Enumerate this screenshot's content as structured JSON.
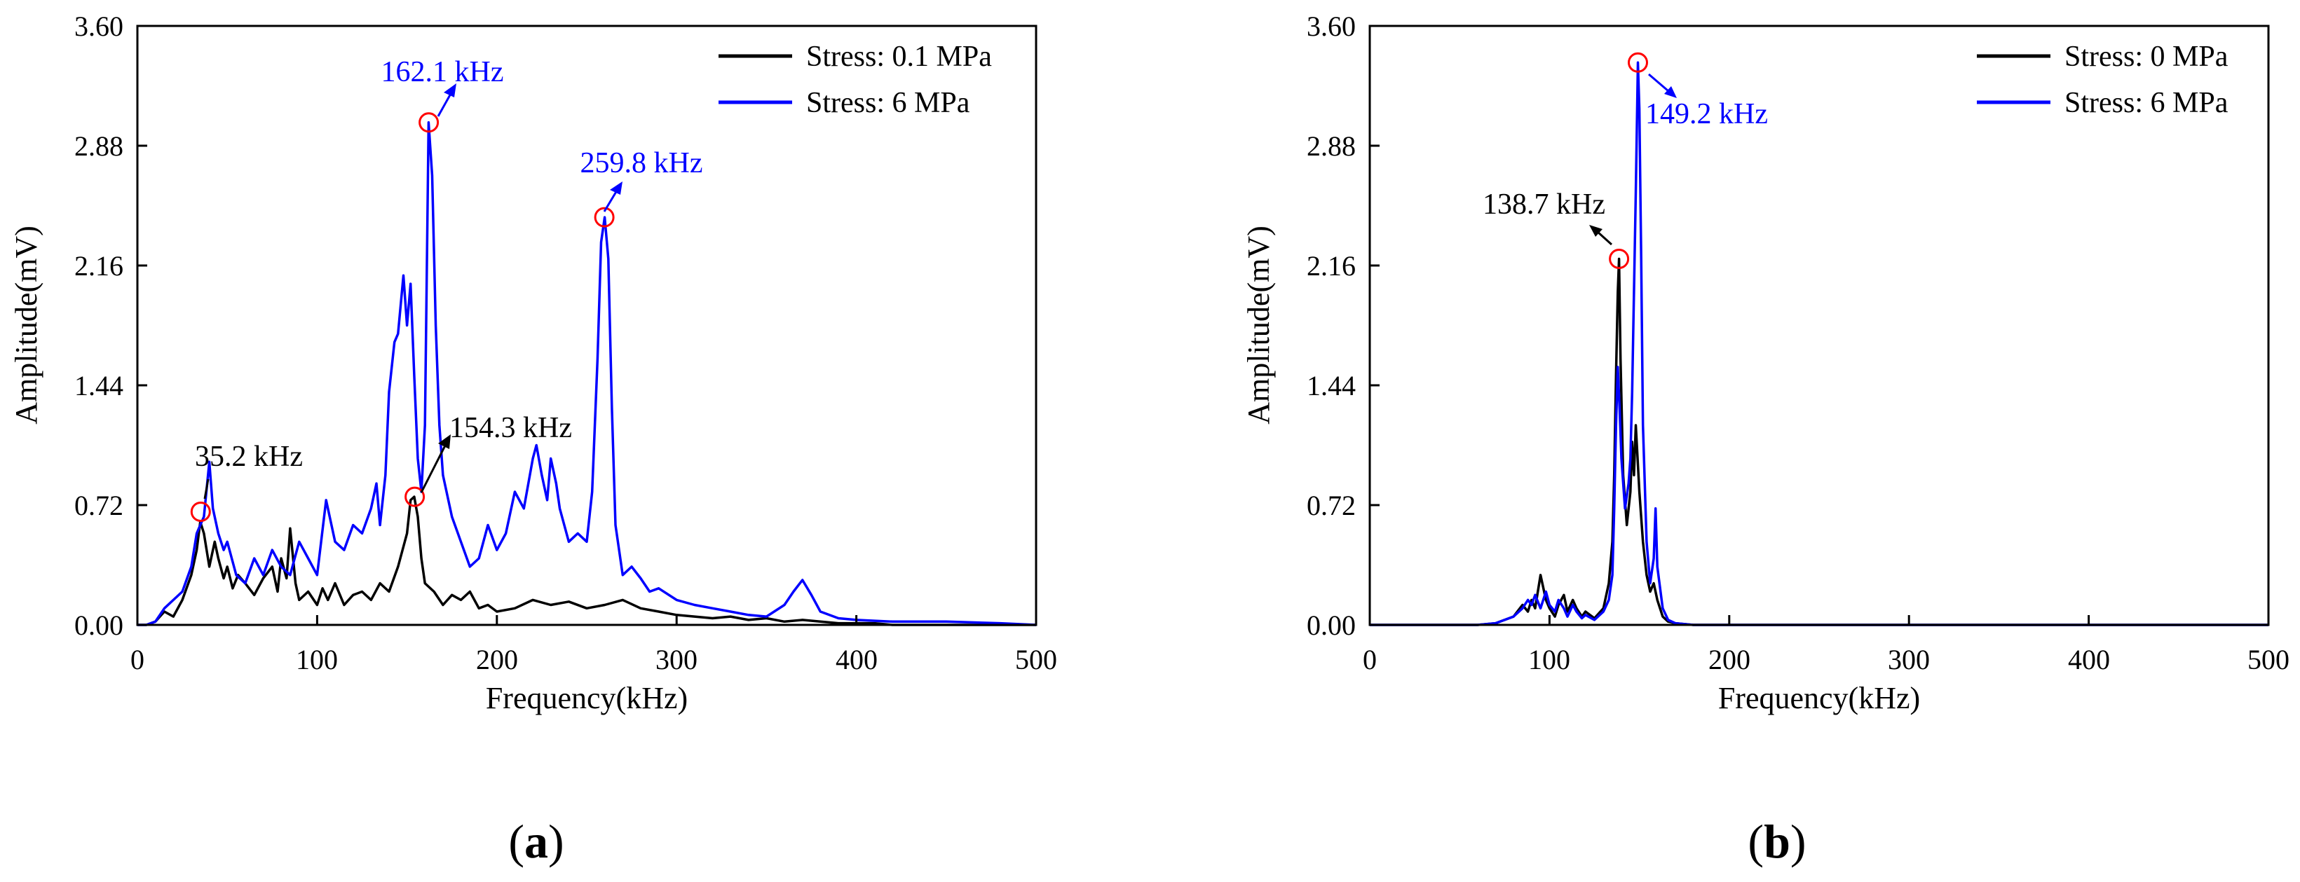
{
  "chart_data": [
    {
      "type": "line",
      "panel_label": "a",
      "title": "",
      "xlabel": "Frequency(kHz)",
      "ylabel": "Amplitude(mV)",
      "xlim": [
        0,
        500
      ],
      "ylim": [
        0,
        3.6
      ],
      "x_ticks": [
        0,
        100,
        200,
        300,
        400,
        500
      ],
      "x_tick_labels": [
        "0",
        "100",
        "200",
        "300",
        "400",
        "500"
      ],
      "y_ticks": [
        0,
        0.72,
        1.44,
        2.16,
        2.88,
        3.6
      ],
      "y_tick_labels": [
        "0.00",
        "0.72",
        "1.44",
        "2.16",
        "2.88",
        "3.60"
      ],
      "grid": false,
      "legend_position": "top-right",
      "series": [
        {
          "name": "Stress: 0.1 MPa",
          "color": "#000000",
          "x": [
            0,
            5,
            10,
            15,
            20,
            25,
            30,
            33,
            35,
            37,
            40,
            43,
            45,
            48,
            50,
            53,
            56,
            60,
            65,
            70,
            75,
            78,
            80,
            83,
            85,
            88,
            90,
            95,
            100,
            103,
            106,
            110,
            115,
            120,
            125,
            130,
            135,
            140,
            145,
            150,
            152,
            154,
            156,
            158,
            160,
            165,
            170,
            175,
            180,
            185,
            190,
            195,
            200,
            210,
            220,
            230,
            240,
            250,
            260,
            270,
            280,
            290,
            300,
            310,
            320,
            330,
            340,
            350,
            360,
            370,
            380,
            390,
            400,
            410,
            420,
            450,
            500
          ],
          "values": [
            0,
            0,
            0.02,
            0.08,
            0.05,
            0.15,
            0.3,
            0.45,
            0.62,
            0.55,
            0.35,
            0.5,
            0.4,
            0.28,
            0.35,
            0.22,
            0.3,
            0.25,
            0.18,
            0.28,
            0.35,
            0.2,
            0.4,
            0.28,
            0.58,
            0.25,
            0.15,
            0.2,
            0.12,
            0.22,
            0.15,
            0.25,
            0.12,
            0.18,
            0.2,
            0.15,
            0.25,
            0.2,
            0.35,
            0.55,
            0.75,
            0.77,
            0.65,
            0.4,
            0.25,
            0.2,
            0.12,
            0.18,
            0.15,
            0.2,
            0.1,
            0.12,
            0.08,
            0.1,
            0.15,
            0.12,
            0.14,
            0.1,
            0.12,
            0.15,
            0.1,
            0.08,
            0.06,
            0.05,
            0.04,
            0.05,
            0.03,
            0.04,
            0.02,
            0.03,
            0.02,
            0.01,
            0.01,
            0.01,
            0,
            0,
            0
          ]
        },
        {
          "name": "Stress: 6 MPa",
          "color": "#0000ff",
          "x": [
            0,
            5,
            10,
            15,
            20,
            25,
            30,
            33,
            35,
            37,
            40,
            42,
            45,
            48,
            50,
            55,
            60,
            65,
            70,
            75,
            80,
            85,
            90,
            95,
            100,
            105,
            110,
            115,
            120,
            125,
            130,
            133,
            135,
            138,
            140,
            143,
            145,
            148,
            150,
            152,
            154,
            156,
            158,
            160,
            162,
            164,
            166,
            168,
            170,
            175,
            180,
            185,
            190,
            195,
            200,
            205,
            210,
            215,
            220,
            222,
            225,
            228,
            230,
            233,
            235,
            240,
            245,
            250,
            253,
            256,
            258,
            260,
            262,
            264,
            266,
            270,
            275,
            280,
            285,
            290,
            300,
            310,
            320,
            330,
            340,
            350,
            360,
            365,
            370,
            375,
            380,
            390,
            400,
            420,
            450,
            480,
            500
          ],
          "values": [
            0,
            0,
            0.02,
            0.1,
            0.15,
            0.2,
            0.35,
            0.55,
            0.6,
            0.65,
            0.98,
            0.7,
            0.55,
            0.45,
            0.5,
            0.3,
            0.25,
            0.4,
            0.3,
            0.45,
            0.35,
            0.3,
            0.5,
            0.4,
            0.3,
            0.75,
            0.5,
            0.45,
            0.6,
            0.55,
            0.7,
            0.85,
            0.6,
            0.9,
            1.4,
            1.7,
            1.75,
            2.1,
            1.8,
            2.05,
            1.5,
            1.0,
            0.8,
            1.2,
            3.02,
            2.7,
            1.8,
            1.2,
            0.9,
            0.65,
            0.5,
            0.35,
            0.4,
            0.6,
            0.45,
            0.55,
            0.8,
            0.7,
            1.0,
            1.08,
            0.9,
            0.75,
            1.0,
            0.85,
            0.7,
            0.5,
            0.55,
            0.5,
            0.8,
            1.6,
            2.3,
            2.45,
            2.2,
            1.3,
            0.6,
            0.3,
            0.35,
            0.28,
            0.2,
            0.22,
            0.15,
            0.12,
            0.1,
            0.08,
            0.06,
            0.05,
            0.12,
            0.2,
            0.27,
            0.18,
            0.08,
            0.04,
            0.03,
            0.02,
            0.02,
            0.01,
            0
          ]
        }
      ],
      "annotations": [
        {
          "text": "35.2 kHz",
          "x": 35.2,
          "y": 0.68,
          "color": "#000000"
        },
        {
          "text": "154.3 kHz",
          "x": 154.3,
          "y": 0.77,
          "color": "#000000"
        },
        {
          "text": "162.1 kHz",
          "x": 162.1,
          "y": 3.02,
          "color": "#0000ff"
        },
        {
          "text": "259.8 kHz",
          "x": 259.8,
          "y": 2.45,
          "color": "#0000ff"
        }
      ]
    },
    {
      "type": "line",
      "panel_label": "b",
      "title": "",
      "xlabel": "Frequency(kHz)",
      "ylabel": "Amplitude(mV)",
      "xlim": [
        0,
        500
      ],
      "ylim": [
        0,
        3.6
      ],
      "x_ticks": [
        0,
        100,
        200,
        300,
        400,
        500
      ],
      "x_tick_labels": [
        "0",
        "100",
        "200",
        "300",
        "400",
        "500"
      ],
      "y_ticks": [
        0,
        0.72,
        1.44,
        2.16,
        2.88,
        3.6
      ],
      "y_tick_labels": [
        "0.00",
        "0.72",
        "1.44",
        "2.16",
        "2.88",
        "3.60"
      ],
      "grid": false,
      "legend_position": "top-right",
      "series": [
        {
          "name": "Stress: 0 MPa",
          "color": "#000000",
          "x": [
            0,
            20,
            40,
            60,
            70,
            80,
            85,
            88,
            90,
            92,
            95,
            98,
            100,
            103,
            105,
            108,
            110,
            113,
            115,
            118,
            120,
            125,
            130,
            133,
            135,
            136,
            137,
            138,
            138.7,
            139.5,
            141,
            143,
            145,
            146,
            147,
            148,
            150,
            152,
            154,
            156,
            158,
            160,
            163,
            166,
            170,
            180,
            200,
            300,
            400,
            500
          ],
          "values": [
            0,
            0,
            0,
            0,
            0.01,
            0.05,
            0.12,
            0.08,
            0.15,
            0.1,
            0.3,
            0.15,
            0.1,
            0.05,
            0.12,
            0.18,
            0.08,
            0.15,
            0.1,
            0.05,
            0.08,
            0.04,
            0.1,
            0.25,
            0.5,
            0.9,
            1.5,
            2.0,
            2.2,
            1.6,
            0.9,
            0.6,
            0.8,
            1.1,
            0.9,
            1.2,
            0.8,
            0.5,
            0.3,
            0.2,
            0.25,
            0.15,
            0.05,
            0.02,
            0.01,
            0,
            0,
            0,
            0,
            0
          ]
        },
        {
          "name": "Stress: 6 MPa",
          "color": "#0000ff",
          "x": [
            0,
            20,
            40,
            60,
            70,
            80,
            85,
            88,
            90,
            92,
            95,
            98,
            100,
            103,
            105,
            108,
            110,
            113,
            115,
            118,
            120,
            125,
            130,
            133,
            135,
            136,
            137,
            138,
            139,
            140,
            142,
            144,
            145,
            146,
            147,
            148,
            149.2,
            150,
            151,
            152,
            154,
            156,
            158,
            159,
            160,
            163,
            166,
            170,
            180,
            200,
            300,
            400,
            500
          ],
          "values": [
            0,
            0,
            0,
            0,
            0.01,
            0.05,
            0.1,
            0.15,
            0.12,
            0.18,
            0.1,
            0.2,
            0.12,
            0.08,
            0.15,
            0.1,
            0.05,
            0.12,
            0.08,
            0.04,
            0.06,
            0.03,
            0.08,
            0.15,
            0.3,
            0.7,
            1.2,
            1.55,
            1.3,
            1.0,
            0.7,
            0.85,
            1.0,
            1.4,
            2.0,
            2.6,
            3.38,
            3.1,
            2.2,
            1.2,
            0.5,
            0.25,
            0.4,
            0.7,
            0.35,
            0.1,
            0.03,
            0.01,
            0,
            0,
            0,
            0,
            0
          ]
        }
      ],
      "annotations": [
        {
          "text": "138.7 kHz",
          "x": 138.7,
          "y": 2.2,
          "color": "#000000"
        },
        {
          "text": "149.2 kHz",
          "x": 149.2,
          "y": 3.38,
          "color": "#0000ff"
        }
      ]
    }
  ]
}
